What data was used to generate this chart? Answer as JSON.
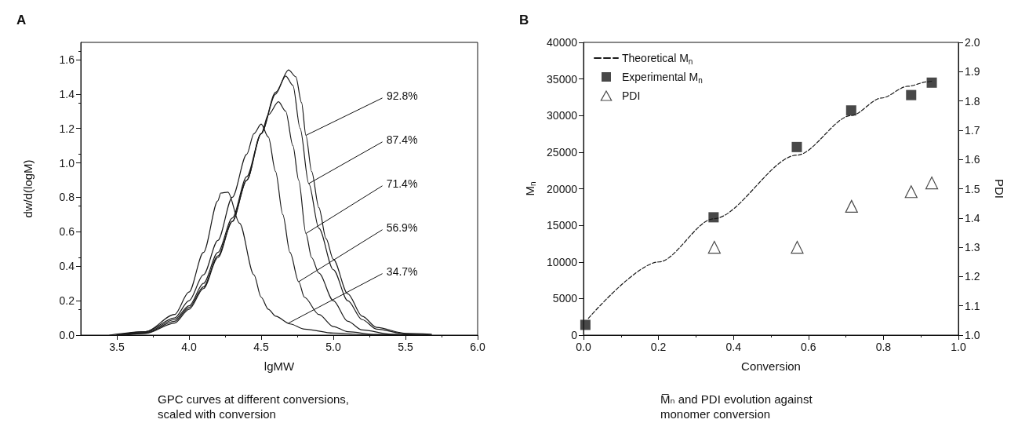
{
  "chart_data": [
    {
      "type": "line",
      "title": "A",
      "xlabel": "lgMW",
      "ylabel": "dw/d(logM)",
      "xlim": [
        3.25,
        6.0
      ],
      "xticks": [
        3.5,
        {
          "value": 4,
          "label": "4.0"
        },
        4.5,
        {
          "value": 5,
          "label": "5.0"
        },
        5.5,
        {
          "value": 6,
          "label": "6.0"
        }
      ],
      "ylim": [
        0,
        1.7
      ],
      "yticks": [
        {
          "value": 0,
          "label": "0.0"
        },
        0.2,
        0.4,
        0.6,
        0.8,
        {
          "value": 1,
          "label": "1.0"
        },
        1.2,
        1.4,
        1.6
      ],
      "grid": false,
      "legend": false,
      "marker": "none",
      "line_style": "solid",
      "series": [
        {
          "color": "#1a1a1a",
          "x": [
            3.45,
            3.7,
            3.9,
            4.0,
            4.1,
            4.2,
            4.22,
            4.27,
            4.35,
            4.45,
            4.5,
            4.55,
            4.6,
            4.7,
            4.8,
            5.0,
            5.2,
            5.68
          ],
          "values": [
            0,
            0.02,
            0.12,
            0.25,
            0.48,
            0.78,
            0.825,
            0.83,
            0.65,
            0.35,
            0.22,
            0.15,
            0.11,
            0.065,
            0.035,
            0.012,
            0.004,
            0
          ]
        },
        {
          "color": "#1a1a1a",
          "x": [
            3.5,
            3.7,
            3.9,
            4.0,
            4.1,
            4.2,
            4.3,
            4.4,
            4.45,
            4.5,
            4.55,
            4.6,
            4.65,
            4.7,
            4.76,
            4.8,
            4.9,
            5.0,
            5.1,
            5.3,
            5.5
          ],
          "values": [
            0,
            0.02,
            0.1,
            0.2,
            0.35,
            0.55,
            0.8,
            1.05,
            1.17,
            1.225,
            1.15,
            0.95,
            0.7,
            0.48,
            0.31,
            0.22,
            0.12,
            0.05,
            0.02,
            0.003,
            0
          ]
        },
        {
          "color": "#1a1a1a",
          "x": [
            3.5,
            3.7,
            3.9,
            4.0,
            4.1,
            4.2,
            4.3,
            4.4,
            4.5,
            4.55,
            4.62,
            4.67,
            4.72,
            4.76,
            4.81,
            4.85,
            4.9,
            5.0,
            5.1,
            5.2,
            5.4,
            5.6
          ],
          "values": [
            0,
            0.015,
            0.09,
            0.17,
            0.3,
            0.48,
            0.68,
            0.92,
            1.17,
            1.28,
            1.355,
            1.3,
            1.1,
            0.9,
            0.59,
            0.45,
            0.36,
            0.2,
            0.08,
            0.03,
            0.005,
            0
          ]
        },
        {
          "color": "#1a1a1a",
          "x": [
            3.5,
            3.7,
            3.9,
            4.0,
            4.1,
            4.2,
            4.3,
            4.4,
            4.5,
            4.6,
            4.67,
            4.72,
            4.77,
            4.83,
            4.9,
            5.0,
            5.1,
            5.2,
            5.3,
            5.5,
            5.68
          ],
          "values": [
            0,
            0.012,
            0.08,
            0.16,
            0.28,
            0.46,
            0.66,
            0.9,
            1.17,
            1.4,
            1.505,
            1.45,
            1.2,
            0.88,
            0.62,
            0.38,
            0.2,
            0.09,
            0.035,
            0.007,
            0
          ]
        },
        {
          "color": "#1a1a1a",
          "x": [
            3.55,
            3.7,
            3.9,
            4.0,
            4.1,
            4.2,
            4.3,
            4.4,
            4.5,
            4.6,
            4.69,
            4.74,
            4.78,
            4.81,
            4.85,
            4.9,
            4.95,
            5.0,
            5.1,
            5.2,
            5.3,
            5.5,
            5.68
          ],
          "values": [
            0,
            0.01,
            0.07,
            0.15,
            0.27,
            0.45,
            0.66,
            0.9,
            1.17,
            1.41,
            1.54,
            1.5,
            1.35,
            1.16,
            0.95,
            0.74,
            0.56,
            0.44,
            0.24,
            0.11,
            0.045,
            0.01,
            0.005
          ]
        }
      ],
      "annotations": [
        {
          "text": "92.8%",
          "x": 4.81,
          "y": 1.16
        },
        {
          "text": "87.4%",
          "x": 4.83,
          "y": 0.88
        },
        {
          "text": "71.4%",
          "x": 4.81,
          "y": 0.59
        },
        {
          "text": "56.9%",
          "x": 4.76,
          "y": 0.31
        },
        {
          "text": "34.7%",
          "x": 4.69,
          "y": 0.07
        },
        "GPC curves at different conversions, scaled with conversion"
      ]
    },
    {
      "type": "scatter",
      "title": "B",
      "xlabel": "Conversion",
      "ylabel": "M$_{n}$",
      "y2label": "PDI",
      "xlim": [
        0,
        1
      ],
      "xticks": [
        {
          "value": 0,
          "label": "0.0"
        },
        0.2,
        0.4,
        0.6,
        0.8,
        {
          "value": 1,
          "label": "1.0"
        }
      ],
      "ylim": [
        0,
        40000
      ],
      "yticks": [
        0,
        5000,
        10000,
        15000,
        20000,
        25000,
        30000,
        35000,
        40000
      ],
      "y2lim": [
        1,
        2
      ],
      "y2ticks": [
        {
          "value": 1,
          "label": "1.0"
        },
        1.1,
        1.2,
        1.3,
        1.4,
        1.5,
        1.6,
        1.7,
        1.8,
        1.9,
        {
          "value": 2,
          "label": "2.0"
        }
      ],
      "grid": false,
      "legend": "top left",
      "series": [
        {
          "name": "Theoretical M$_{n}$",
          "type": "line",
          "line_style": "dashed",
          "marker": "none",
          "color": "#1a1a1a",
          "x": [
            0.013,
            0.201,
            0.347,
            0.57,
            0.714,
            0.795,
            0.865,
            0.917,
            0.929
          ],
          "values": [
            2300,
            10000,
            15900,
            24600,
            30000,
            32400,
            34000,
            34600,
            34700
          ]
        },
        {
          "name": "Experimental M$_{n}$",
          "marker": "square",
          "color": "#1a1a1a",
          "x": [
            0.005,
            0.347,
            0.569,
            0.714,
            0.874,
            0.929
          ],
          "values": [
            1400,
            16100,
            25700,
            30700,
            32800,
            34500
          ]
        },
        {
          "name": "PDI",
          "marker": "triangle",
          "axis": "y2",
          "color": "#1a1a1a",
          "x": [
            0.349,
            0.57,
            0.715,
            0.874,
            0.929
          ],
          "values": [
            1.3,
            1.3,
            1.44,
            1.49,
            1.52
          ]
        }
      ],
      "annotations": [
        "M̅ₙ and PDI evolution against monomer conversion"
      ]
    }
  ]
}
